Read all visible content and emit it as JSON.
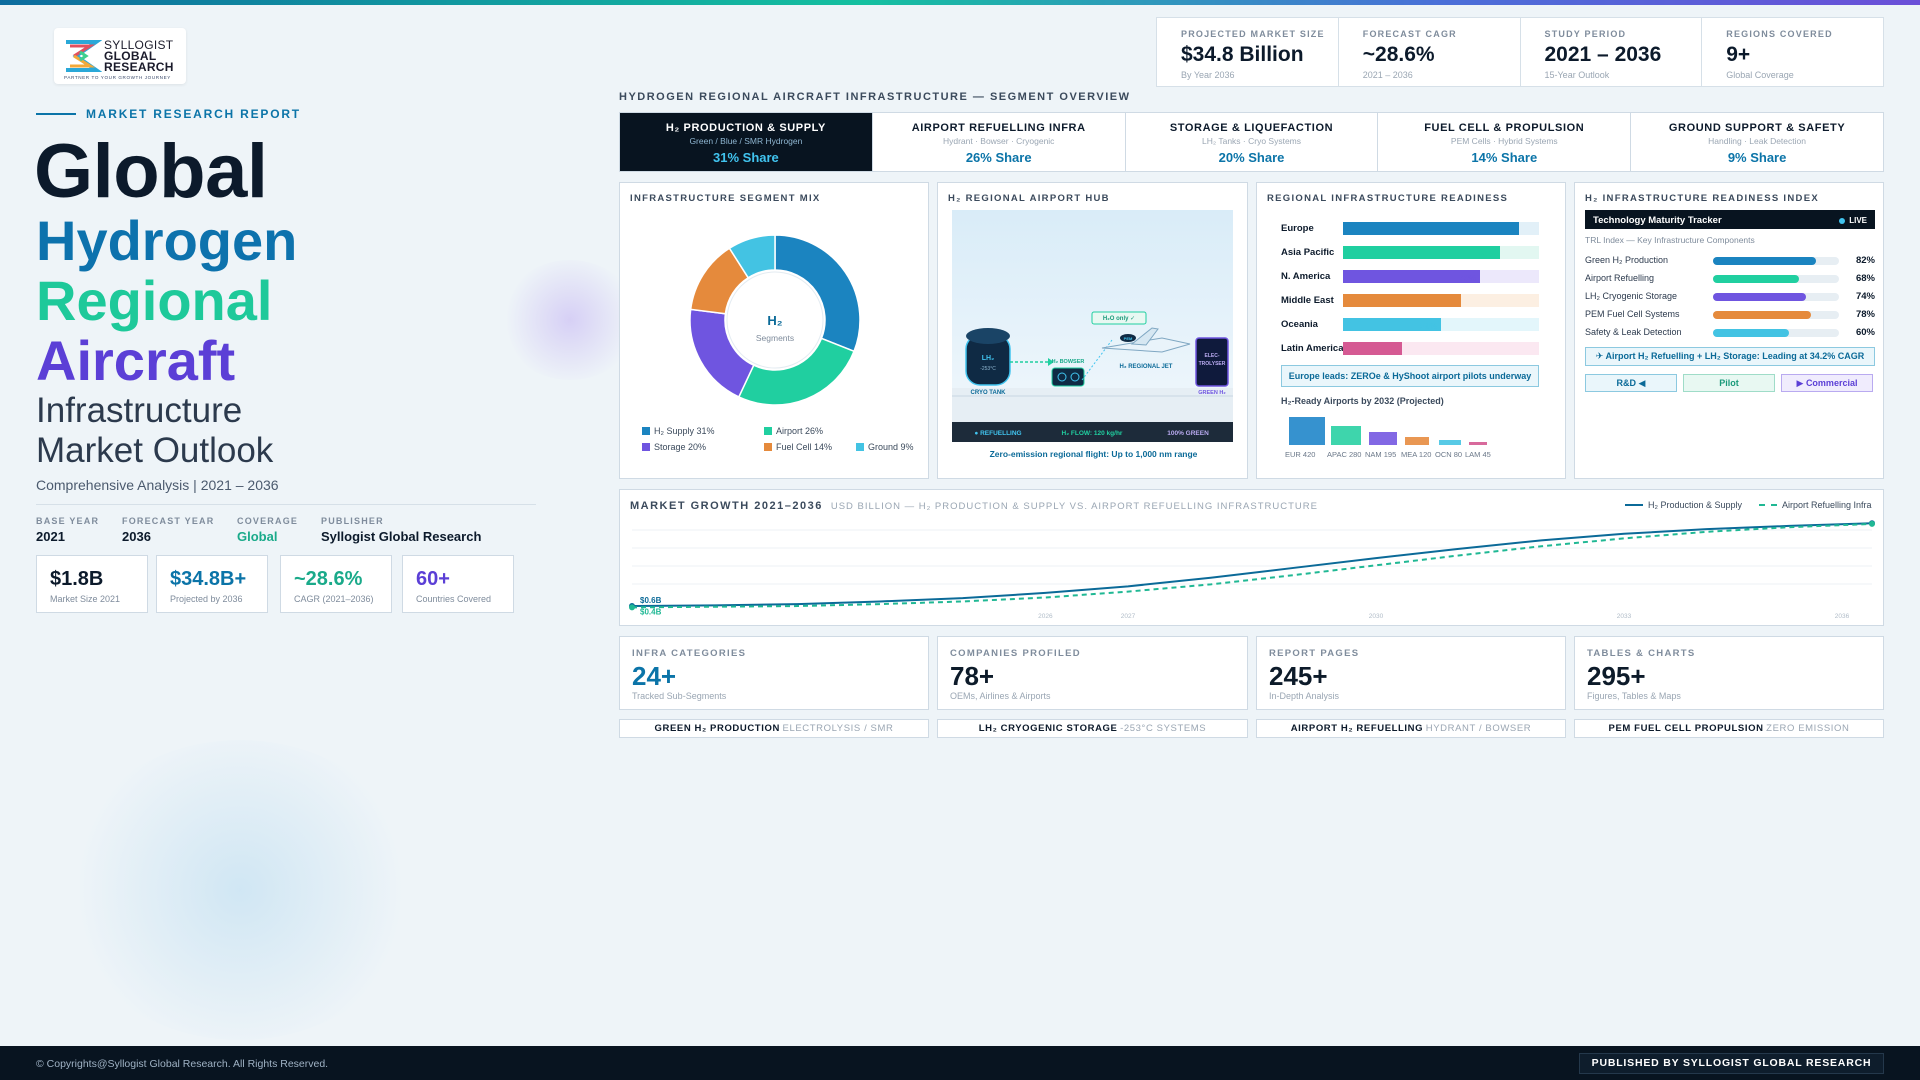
{
  "logo": {
    "line1": "SYLLOGIST",
    "line2": "GLOBAL",
    "line3": "RESEARCH",
    "tagline": "PARTNER TO YOUR GROWTH JOURNEY"
  },
  "hero": {
    "kicker": "MARKET RESEARCH REPORT",
    "title1": "Global",
    "title2": "Hydrogen",
    "title3": "Regional",
    "title4": "Aircraft",
    "title5a": "Infrastructure",
    "title5b": "Market Outlook",
    "subtitle": "Comprehensive Analysis  |  2021 – 2036",
    "meta": [
      {
        "label": "BASE YEAR",
        "value": "2021"
      },
      {
        "label": "FORECAST YEAR",
        "value": "2036"
      },
      {
        "label": "COVERAGE",
        "value": "Global"
      },
      {
        "label": "PUBLISHER",
        "value": "Syllogist Global Research"
      }
    ],
    "kpis": [
      {
        "value": "$1.8B",
        "label": "Market Size 2021",
        "color": "#0c1a2b"
      },
      {
        "value": "$34.8B+",
        "label": "Projected by 2036",
        "color": "#0b74a8"
      },
      {
        "value": "~28.6%",
        "label": "CAGR (2021–2036)",
        "color": "#1aaa8a"
      },
      {
        "value": "60+",
        "label": "Countries Covered",
        "color": "#5b3fd6"
      }
    ]
  },
  "stats": [
    {
      "label": "PROJECTED MARKET SIZE",
      "value": "$34.8 Billion",
      "sub": "By Year 2036"
    },
    {
      "label": "FORECAST CAGR",
      "value": "~28.6%",
      "sub": "2021 – 2036"
    },
    {
      "label": "STUDY PERIOD",
      "value": "2021 – 2036",
      "sub": "15-Year Outlook"
    },
    {
      "label": "REGIONS COVERED",
      "value": "9+",
      "sub": "Global Coverage"
    }
  ],
  "segment_title": "HYDROGEN REGIONAL AIRCRAFT INFRASTRUCTURE — SEGMENT OVERVIEW",
  "tabs": [
    {
      "title": "H₂ PRODUCTION & SUPPLY",
      "sub": "Green / Blue / SMR Hydrogen",
      "share": "31% Share"
    },
    {
      "title": "AIRPORT REFUELLING INFRA",
      "sub": "Hydrant · Bowser · Cryogenic",
      "share": "26% Share"
    },
    {
      "title": "STORAGE & LIQUEFACTION",
      "sub": "LH₂ Tanks · Cryo Systems",
      "share": "20% Share"
    },
    {
      "title": "FUEL CELL & PROPULSION",
      "sub": "PEM Cells · Hybrid Systems",
      "share": "14% Share"
    },
    {
      "title": "GROUND SUPPORT & SAFETY",
      "sub": "Handling · Leak Detection",
      "share": "9% Share"
    }
  ],
  "mix": {
    "title": "INFRASTRUCTURE SEGMENT MIX",
    "center1": "H₂",
    "center2": "Segments",
    "legend": [
      {
        "label": "H₂ Supply 31%",
        "color": "#1b84c0"
      },
      {
        "label": "Airport 26%",
        "color": "#20cfa0"
      },
      {
        "label": "Storage 20%",
        "color": "#6f55e0"
      },
      {
        "label": "Fuel Cell 14%",
        "color": "#e58a3c"
      },
      {
        "label": "Ground 9%",
        "color": "#43c3e3"
      }
    ]
  },
  "chart_data": [
    {
      "type": "pie",
      "title": "INFRASTRUCTURE SEGMENT MIX",
      "categories": [
        "H₂ Supply",
        "Airport",
        "Storage",
        "Fuel Cell",
        "Ground"
      ],
      "values": [
        31,
        26,
        20,
        14,
        9
      ]
    },
    {
      "type": "bar",
      "title": "REGIONAL INFRASTRUCTURE READINESS",
      "categories": [
        "Europe",
        "Asia Pacific",
        "N. America",
        "Middle East",
        "Oceania",
        "Latin America"
      ],
      "values": [
        90,
        80,
        70,
        60,
        50,
        30
      ],
      "xlim": [
        0,
        100
      ]
    },
    {
      "type": "bar",
      "title": "H₂-Ready Airports by 2032 (Projected)",
      "categories": [
        "EUR",
        "APAC",
        "NAM",
        "MEA",
        "OCN",
        "LAM"
      ],
      "values": [
        420,
        280,
        195,
        120,
        80,
        45
      ]
    },
    {
      "type": "bar",
      "title": "H₂ INFRASTRUCTURE READINESS INDEX",
      "categories": [
        "Green H₂ Production",
        "Airport Refuelling",
        "LH₂ Cryogenic Storage",
        "PEM Fuel Cell Systems",
        "Safety & Leak Detection"
      ],
      "values": [
        82,
        68,
        74,
        78,
        60
      ],
      "xlim": [
        0,
        100
      ]
    },
    {
      "type": "line",
      "title": "MARKET GROWTH 2021–2036",
      "x": [
        2021,
        2022,
        2023,
        2024,
        2025,
        2026,
        2027,
        2028,
        2029,
        2030,
        2031,
        2032,
        2033,
        2034,
        2035,
        2036
      ],
      "series": [
        {
          "name": "H₂ Production & Supply",
          "values": [
            0.6,
            0.7,
            0.9,
            1.3,
            1.8,
            2.6,
            3.6,
            4.9,
            6.4,
            7.9,
            9.3,
            10.6,
            11.6,
            12.3,
            12.8,
            13.2
          ]
        },
        {
          "name": "Airport Refuelling Infra",
          "values": [
            0.4,
            0.5,
            0.6,
            0.9,
            1.3,
            1.9,
            2.8,
            3.9,
            5.3,
            6.8,
            8.3,
            9.7,
            10.9,
            11.9,
            12.6,
            13.1
          ]
        }
      ],
      "ylim": [
        0,
        14
      ]
    }
  ],
  "hub": {
    "title": "H₂ REGIONAL AIRPORT HUB",
    "tank": "LH₂",
    "tank_temp": "-253°C",
    "tank_label": "CRYO TANK",
    "bowser": "H₂ BOWSER",
    "jet": "H₂ REGIONAL JET",
    "water": "H₂O only ✓",
    "pem": "PEM",
    "elec1": "ELEC-",
    "elec2": "TROLYSER",
    "green": "GREEN H₂",
    "status1": "● REFUELLING",
    "status2": "H₂ FLOW: 120 kg/hr",
    "status3": "100% GREEN",
    "caption": "Zero-emission regional flight: Up to 1,000 nm range"
  },
  "readiness": {
    "title": "REGIONAL INFRASTRUCTURE READINESS",
    "rows": [
      {
        "label": "Europe",
        "pct": "90%",
        "value": 90,
        "color": "#1b84c0",
        "track": "#e2f0f8"
      },
      {
        "label": "Asia Pacific",
        "pct": "80%",
        "value": 80,
        "color": "#20cfa0",
        "track": "#e2f7f1"
      },
      {
        "label": "N. America",
        "pct": "70%",
        "value": 70,
        "color": "#6f55e0",
        "track": "#ece8fb"
      },
      {
        "label": "Middle East",
        "pct": "60%",
        "value": 60,
        "color": "#e58a3c",
        "track": "#fcefe2"
      },
      {
        "label": "Oceania",
        "pct": "50%",
        "value": 50,
        "color": "#43c3e3",
        "track": "#e3f6fb"
      },
      {
        "label": "Latin America",
        "pct": "30%",
        "value": 30,
        "color": "#d55a93",
        "track": "#fbe8f1"
      }
    ],
    "callout": "Europe leads: ZEROe & HyShoot airport pilots underway",
    "mini_title": "H₂-Ready Airports by 2032 (Projected)",
    "mini": [
      {
        "label": "EUR 420",
        "value": 420,
        "color": "#2b8ccc"
      },
      {
        "label": "APAC 280",
        "value": 280,
        "color": "#34d3a8"
      },
      {
        "label": "NAM 195",
        "value": 195,
        "color": "#7b60e3"
      },
      {
        "label": "MEA 120",
        "value": 120,
        "color": "#e8914a"
      },
      {
        "label": "OCN 80",
        "value": 80,
        "color": "#4fc7e5"
      },
      {
        "label": "LAM 45",
        "value": 45,
        "color": "#d66297"
      }
    ]
  },
  "index": {
    "title": "H₂ INFRASTRUCTURE READINESS INDEX",
    "tracker": "Technology Maturity Tracker",
    "live": "LIVE",
    "trl": "TRL Index — Key Infrastructure Components",
    "rows": [
      {
        "label": "Green H₂ Production",
        "pct": "82%",
        "value": 82,
        "color": "#1b84c0"
      },
      {
        "label": "Airport Refuelling",
        "pct": "68%",
        "value": 68,
        "color": "#20cfa0"
      },
      {
        "label": "LH₂ Cryogenic Storage",
        "pct": "74%",
        "value": 74,
        "color": "#6f55e0"
      },
      {
        "label": "PEM Fuel Cell Systems",
        "pct": "78%",
        "value": 78,
        "color": "#e58a3c"
      },
      {
        "label": "Safety & Leak Detection",
        "pct": "60%",
        "value": 60,
        "color": "#43c3e3"
      }
    ],
    "lead": "✈ Airport H₂ Refuelling + LH₂ Storage: Leading at 34.2% CAGR",
    "pills": [
      {
        "label": "R&D ◀",
        "color": "#0b6a98",
        "bg": "#eaf6fb",
        "border": "#8cc9e0"
      },
      {
        "label": "Pilot",
        "color": "#1a9a7a",
        "bg": "#e8f8f2",
        "border": "#9fdcc8"
      },
      {
        "label": "▶ Commercial",
        "color": "#5b3fd6",
        "bg": "#f0ecfd",
        "border": "#b9aaf0"
      }
    ]
  },
  "growth": {
    "title": "MARKET GROWTH 2021–2036",
    "subtitle": "USD BILLION — H₂ PRODUCTION & SUPPLY VS. AIRPORT REFUELLING INFRASTRUCTURE",
    "legend1": "H₂ Production & Supply",
    "legend2": "Airport Refuelling Infra",
    "start_label1": "$0.6B",
    "start_label2": "$0.4B",
    "ticks": [
      "2026",
      "2027",
      "2030",
      "2033",
      "2036"
    ]
  },
  "bottom": [
    {
      "label": "INFRA CATEGORIES",
      "value": "24+",
      "sub": "Tracked Sub-Segments",
      "color": "#0b74a8"
    },
    {
      "label": "COMPANIES PROFILED",
      "value": "78+",
      "sub": "OEMs, Airlines & Airports",
      "color": "#0c1a2b"
    },
    {
      "label": "REPORT PAGES",
      "value": "245+",
      "sub": "In-Depth Analysis",
      "color": "#0c1a2b"
    },
    {
      "label": "TABLES & CHARTS",
      "value": "295+",
      "sub": "Figures, Tables & Maps",
      "color": "#0c1a2b"
    }
  ],
  "tags": [
    {
      "bold": "GREEN H₂ PRODUCTION",
      "light": "ELECTROLYSIS / SMR"
    },
    {
      "bold": "LH₂ CRYOGENIC STORAGE",
      "light": "-253°C SYSTEMS"
    },
    {
      "bold": "AIRPORT H₂ REFUELLING",
      "light": "HYDRANT / BOWSER"
    },
    {
      "bold": "PEM FUEL CELL PROPULSION",
      "light": "ZERO EMISSION"
    }
  ],
  "footer": {
    "copyright": "© Copyrights@Syllogist Global Research. All Rights Reserved.",
    "badge": "PUBLISHED BY SYLLOGIST GLOBAL RESEARCH"
  }
}
